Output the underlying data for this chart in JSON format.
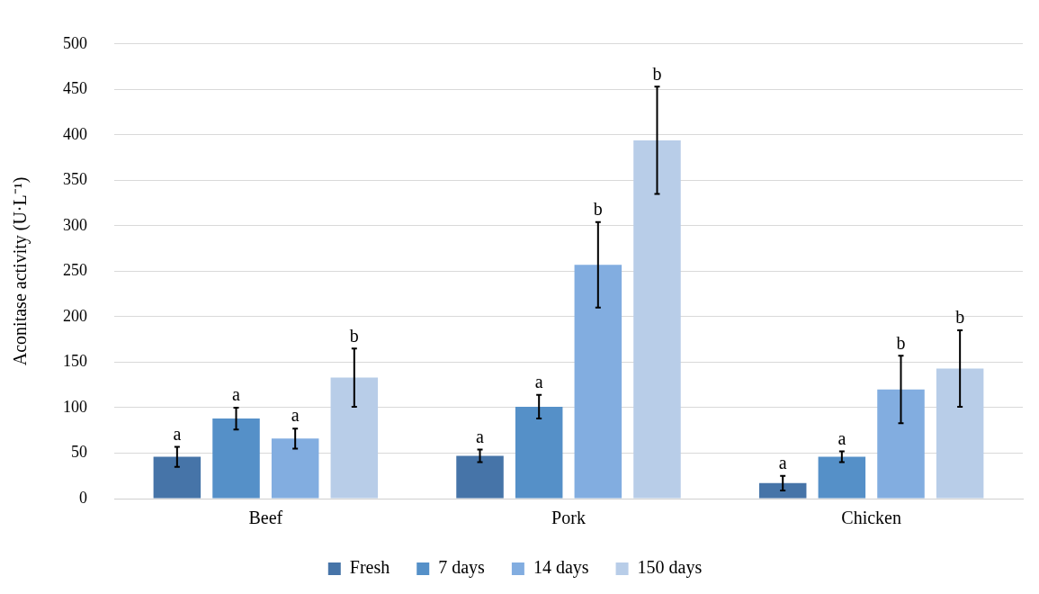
{
  "chart_data": {
    "type": "bar",
    "ylabel": "Aconitase activity (U·L⁻¹)",
    "categories": [
      "Beef",
      "Pork",
      "Chicken"
    ],
    "series": [
      {
        "name": "Fresh",
        "color": "#4674a8",
        "values": [
          46,
          47,
          17
        ],
        "errors": [
          11,
          7,
          8
        ],
        "value_labels": [
          "a",
          "a",
          "a"
        ]
      },
      {
        "name": "7 days",
        "color": "#5590c8",
        "values": [
          88,
          101,
          46
        ],
        "errors": [
          12,
          13,
          6
        ],
        "value_labels": [
          "a",
          "a",
          "a"
        ]
      },
      {
        "name": "14 days",
        "color": "#82ade0",
        "values": [
          66,
          257,
          120
        ],
        "errors": [
          11,
          47,
          37
        ],
        "value_labels": [
          "a",
          "b",
          "b"
        ]
      },
      {
        "name": "150 days",
        "color": "#b8cde8",
        "values": [
          133,
          394,
          143
        ],
        "errors": [
          32,
          59,
          42
        ],
        "value_labels": [
          "b",
          "b",
          "b"
        ]
      }
    ],
    "ylim": [
      0,
      500
    ],
    "yticks": [
      0,
      50,
      100,
      150,
      200,
      250,
      300,
      350,
      400,
      450,
      500
    ],
    "grid": "y",
    "legend": "bottom"
  }
}
